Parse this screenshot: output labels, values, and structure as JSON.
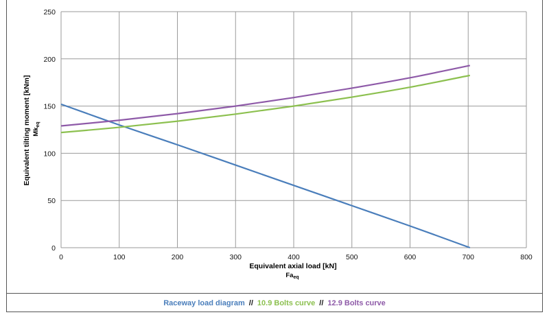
{
  "chart_data": {
    "type": "line",
    "xlabel": "Equivalent axial load [kN]",
    "xlabel_sub": "Fa",
    "xlabel_sub_index": "eq",
    "ylabel": "Equivalent tilting moment [kNm]",
    "ylabel_sub": "Mk",
    "ylabel_sub_index": "eq",
    "xlim": [
      0,
      800
    ],
    "ylim": [
      0,
      250
    ],
    "x_ticks": [
      0,
      100,
      200,
      300,
      400,
      500,
      600,
      700,
      800
    ],
    "y_ticks": [
      0,
      50,
      100,
      150,
      200,
      250
    ],
    "grid": true,
    "series": [
      {
        "name": "Raceway load diagram",
        "color": "#4a7ebb",
        "x": [
          0,
          100,
          200,
          300,
          400,
          500,
          600,
          703
        ],
        "y": [
          152,
          130,
          109,
          87.5,
          66,
          44.5,
          23,
          0
        ]
      },
      {
        "name": "10.9 Bolts curve",
        "color": "#8cc04f",
        "x": [
          0,
          100,
          200,
          300,
          400,
          500,
          600,
          703
        ],
        "y": [
          122,
          127.5,
          134,
          141.5,
          150,
          159.5,
          170,
          182.5
        ]
      },
      {
        "name": "12.9 Bolts curve",
        "color": "#8e5aa8",
        "x": [
          0,
          100,
          200,
          300,
          400,
          500,
          600,
          703
        ],
        "y": [
          129,
          135,
          142,
          150,
          159,
          169,
          180,
          193
        ]
      }
    ],
    "legend": {
      "placement": "bottom",
      "separator": "//"
    }
  }
}
